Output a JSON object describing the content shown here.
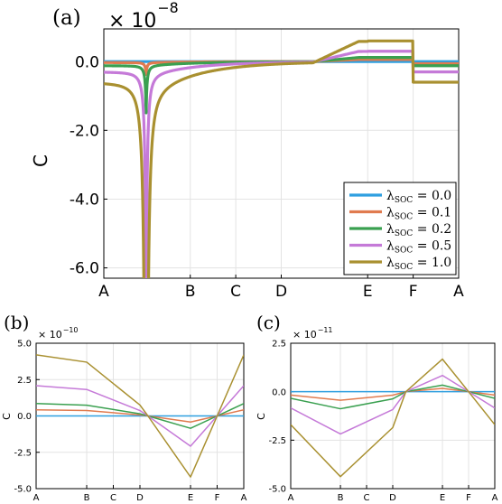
{
  "panels": [
    {
      "label": "(a)",
      "multiplier": "× 10",
      "exponent": "−8",
      "ylabel": "C",
      "ylim": [
        -6.3,
        0.95
      ],
      "yticks": [
        0.0,
        -2.0,
        -4.0,
        -6.0
      ],
      "ytick_labels": [
        "0.0",
        "-2.0",
        "-4.0",
        "-6.0"
      ],
      "xticks": [
        "A",
        "B",
        "C",
        "D",
        "E",
        "F",
        "A"
      ],
      "xtick_pos": [
        0,
        1.9,
        2.9,
        3.9,
        5.8,
        6.8,
        7.8
      ],
      "legend": {
        "placement": "bottom-right",
        "entries": [
          {
            "series": 0,
            "text": "λSOC = 0.0",
            "main": "λ",
            "sub": "SOC",
            "val": " = 0.0"
          },
          {
            "series": 1,
            "text": "λSOC = 0.1",
            "main": "λ",
            "sub": "SOC",
            "val": " = 0.1"
          },
          {
            "series": 2,
            "text": "λSOC = 0.2",
            "main": "λ",
            "sub": "SOC",
            "val": " = 0.2"
          },
          {
            "series": 3,
            "text": "λSOC = 0.5",
            "main": "λ",
            "sub": "SOC",
            "val": " = 0.5"
          },
          {
            "series": 4,
            "text": "λSOC = 1.0",
            "main": "λ",
            "sub": "SOC",
            "val": " = 1.0"
          }
        ]
      }
    },
    {
      "label": "(b)",
      "multiplier": "× 10",
      "exponent": "−10",
      "ylabel": "C",
      "ylim": [
        -5.0,
        5.0
      ],
      "yticks": [
        5.0,
        2.5,
        0.0,
        -2.5,
        -5.0
      ],
      "ytick_labels": [
        "5.0",
        "2.5",
        "0.0",
        "-2.5",
        "-5.0"
      ],
      "xticks": [
        "A",
        "B",
        "C",
        "D",
        "E",
        "F",
        "A"
      ],
      "xtick_pos": [
        0,
        1.9,
        2.9,
        3.9,
        5.8,
        6.8,
        7.8
      ]
    },
    {
      "label": "(c)",
      "multiplier": "× 10",
      "exponent": "−11",
      "ylabel": "C",
      "ylim": [
        -5.0,
        2.5
      ],
      "yticks": [
        2.5,
        0.0,
        -2.5,
        -5.0
      ],
      "ytick_labels": [
        "2.5",
        "0.0",
        "-2.5",
        "-5.0"
      ],
      "xticks": [
        "A",
        "B",
        "C",
        "D",
        "E",
        "F",
        "A"
      ],
      "xtick_pos": [
        0,
        1.9,
        2.9,
        3.9,
        5.8,
        6.8,
        7.8
      ]
    }
  ],
  "chart_data": [
    {
      "type": "line",
      "panel": "(a)",
      "scale": "× 10^-8",
      "x_path": [
        "A",
        "B",
        "C",
        "D",
        "E",
        "F",
        "A"
      ],
      "ylim": [
        -6.3,
        0.95
      ],
      "series": [
        {
          "lambda_soc": 0.0,
          "color": "#2e9fe0",
          "pole_x": 0.93,
          "pole_depth": 0.0,
          "tail": 0.0,
          "left_offset": 0.0,
          "plateau": 0.0,
          "after_F": 0.0
        },
        {
          "lambda_soc": 0.1,
          "color": "#e07b4f",
          "pole_x": 0.93,
          "pole_depth": 0.006,
          "tail": 0.0,
          "left_offset": -0.03,
          "plateau": 0.06,
          "after_F": -0.06
        },
        {
          "lambda_soc": 0.2,
          "color": "#3aa050",
          "pole_x": 0.93,
          "pole_depth": 0.024,
          "tail": 0.0,
          "left_offset": -0.12,
          "plateau": 0.12,
          "after_F": -0.12
        },
        {
          "lambda_soc": 0.5,
          "color": "#c57ad8",
          "pole_x": 0.93,
          "pole_depth": 0.15,
          "tail": -0.1,
          "left_offset": -0.3,
          "plateau": 0.3,
          "after_F": -0.3
        },
        {
          "lambda_soc": 1.0,
          "color": "#a99030",
          "pole_x": 0.93,
          "pole_depth": 0.6,
          "tail": -0.35,
          "left_offset": -0.6,
          "plateau": 0.6,
          "after_F": -0.6
        }
      ]
    },
    {
      "type": "line",
      "panel": "(b)",
      "scale": "× 10^-10",
      "x": [
        0,
        1.9,
        2.9,
        3.9,
        5.8,
        6.8,
        7.8
      ],
      "x_labels": [
        "A",
        "B",
        "C",
        "D",
        "E",
        "F",
        "A"
      ],
      "ylim": [
        -5.0,
        5.0
      ],
      "series": [
        {
          "lambda_soc": 0.0,
          "color": "#2e9fe0",
          "points": [
            [
              0,
              0.0
            ],
            [
              1.9,
              0.0
            ],
            [
              4.2,
              0.0
            ],
            [
              5.8,
              0.0
            ],
            [
              6.8,
              0.0
            ],
            [
              7.8,
              0.0
            ]
          ]
        },
        {
          "lambda_soc": 0.1,
          "color": "#e07b4f",
          "points": [
            [
              0,
              0.42
            ],
            [
              1.9,
              0.37
            ],
            [
              3.9,
              0.07
            ],
            [
              4.2,
              0.0
            ],
            [
              5.8,
              -0.42
            ],
            [
              6.8,
              0.0
            ],
            [
              7.8,
              0.42
            ]
          ]
        },
        {
          "lambda_soc": 0.2,
          "color": "#3aa050",
          "points": [
            [
              0,
              0.85
            ],
            [
              1.9,
              0.74
            ],
            [
              3.9,
              0.15
            ],
            [
              4.2,
              0.0
            ],
            [
              5.8,
              -0.85
            ],
            [
              6.8,
              0.0
            ],
            [
              7.8,
              0.85
            ]
          ]
        },
        {
          "lambda_soc": 0.5,
          "color": "#c57ad8",
          "points": [
            [
              0,
              2.08
            ],
            [
              1.9,
              1.82
            ],
            [
              3.9,
              0.37
            ],
            [
              4.2,
              0.0
            ],
            [
              5.8,
              -2.08
            ],
            [
              6.8,
              0.0
            ],
            [
              7.8,
              2.08
            ]
          ]
        },
        {
          "lambda_soc": 1.0,
          "color": "#a99030",
          "points": [
            [
              0,
              4.2
            ],
            [
              1.9,
              3.7
            ],
            [
              3.9,
              0.75
            ],
            [
              4.2,
              0.0
            ],
            [
              5.8,
              -4.2
            ],
            [
              6.8,
              0.0
            ],
            [
              7.8,
              4.2
            ]
          ]
        }
      ]
    },
    {
      "type": "line",
      "panel": "(c)",
      "scale": "× 10^-11",
      "x": [
        0,
        1.9,
        2.9,
        3.9,
        5.8,
        6.8,
        7.8
      ],
      "x_labels": [
        "A",
        "B",
        "C",
        "D",
        "E",
        "F",
        "A"
      ],
      "ylim": [
        -5.0,
        2.5
      ],
      "series": [
        {
          "lambda_soc": 0.0,
          "color": "#2e9fe0",
          "points": [
            [
              0,
              0.0
            ],
            [
              1.9,
              0.0
            ],
            [
              4.4,
              0.0
            ],
            [
              5.8,
              0.0
            ],
            [
              6.8,
              0.0
            ],
            [
              7.8,
              0.0
            ]
          ]
        },
        {
          "lambda_soc": 0.1,
          "color": "#e07b4f",
          "points": [
            [
              0,
              -0.17
            ],
            [
              1.9,
              -0.44
            ],
            [
              3.9,
              -0.18
            ],
            [
              4.4,
              0.0
            ],
            [
              5.8,
              0.17
            ],
            [
              6.8,
              0.0
            ],
            [
              7.8,
              -0.17
            ]
          ]
        },
        {
          "lambda_soc": 0.2,
          "color": "#3aa050",
          "points": [
            [
              0,
              -0.34
            ],
            [
              1.9,
              -0.88
            ],
            [
              3.9,
              -0.37
            ],
            [
              4.4,
              0.0
            ],
            [
              5.8,
              0.34
            ],
            [
              6.8,
              0.0
            ],
            [
              7.8,
              -0.34
            ]
          ]
        },
        {
          "lambda_soc": 0.5,
          "color": "#c57ad8",
          "points": [
            [
              0,
              -0.84
            ],
            [
              1.9,
              -2.18
            ],
            [
              3.9,
              -0.92
            ],
            [
              4.4,
              0.0
            ],
            [
              5.8,
              0.84
            ],
            [
              6.8,
              0.0
            ],
            [
              7.8,
              -0.84
            ]
          ]
        },
        {
          "lambda_soc": 1.0,
          "color": "#a99030",
          "points": [
            [
              0,
              -1.7
            ],
            [
              1.9,
              -4.38
            ],
            [
              3.9,
              -1.85
            ],
            [
              4.4,
              0.0
            ],
            [
              5.8,
              1.68
            ],
            [
              6.8,
              0.0
            ],
            [
              7.8,
              -1.7
            ]
          ]
        }
      ]
    }
  ]
}
